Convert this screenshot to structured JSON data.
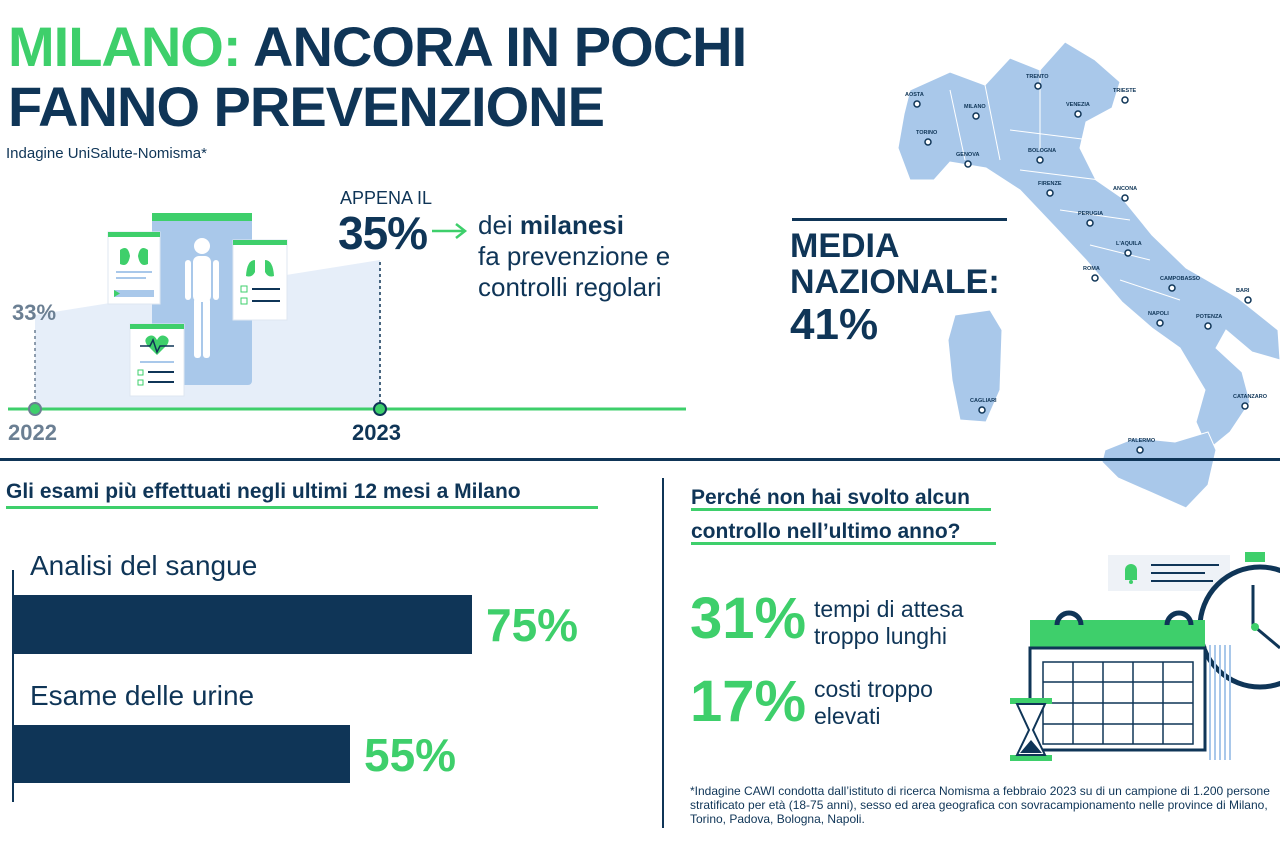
{
  "header": {
    "title_accent": "MILANO:",
    "title_rest": "ANCORA IN POCHI",
    "title_line2": "FANNO PREVENZIONE",
    "subtitle": "Indagine UniSalute-Nomisma*"
  },
  "trend": {
    "prefix": "APPENA IL",
    "highlight_value": "35%",
    "text_part1": "dei ",
    "text_bold": "milanesi",
    "text_line2": "fa prevenzione e",
    "text_line3": "controlli regolari",
    "start_value_label": "33%",
    "start_year": "2022",
    "end_year": "2023"
  },
  "national": {
    "label_line1": "MEDIA",
    "label_line2": "NAZIONALE:",
    "value": "41%"
  },
  "map": {
    "cities": [
      "AOSTA",
      "TORINO",
      "MILANO",
      "TRENTO",
      "VENEZIA",
      "TRIESTE",
      "GENOVA",
      "BOLOGNA",
      "FIRENZE",
      "ANCONA",
      "PERUGIA",
      "L'AQUILA",
      "ROMA",
      "CAMPOBASSO",
      "BARI",
      "NAPOLI",
      "POTENZA",
      "CATANZARO",
      "PALERMO",
      "CAGLIARI"
    ]
  },
  "exams": {
    "title": "Gli esami più effettuati negli ultimi 12 mesi a Milano"
  },
  "reasons": {
    "title_line1": "Perché non hai svolto alcun",
    "title_line2": "controllo nell’ultimo anno?",
    "items": [
      {
        "value": "31%",
        "line1": "tempi di attesa",
        "line2": "troppo lunghi"
      },
      {
        "value": "17%",
        "line1": "costi troppo",
        "line2": "elevati"
      }
    ]
  },
  "footnote": "*Indagine CAWI condotta dall’istituto di ricerca Nomisma a febbraio 2023 su di un campione di 1.200 persone stratificato per età (18-75 anni), sesso ed area geografica con sovracampionamento nelle province di Milano, Torino, Padova, Bologna, Napoli.",
  "colors": {
    "navy": "#0f3557",
    "green": "#3ecf6b",
    "light_blue": "#9fc3e8",
    "map_blue": "#a9c8ea"
  },
  "chart_data": [
    {
      "type": "bar",
      "categories": [
        "Analisi del sangue",
        "Esame delle urine"
      ],
      "values": [
        75,
        55
      ],
      "value_labels": [
        "75%",
        "55%"
      ],
      "title": "Gli esami più effettuati negli ultimi 12 mesi a Milano",
      "xlim": [
        0,
        100
      ]
    },
    {
      "type": "line",
      "x": [
        "2022",
        "2023"
      ],
      "values": [
        33,
        35
      ],
      "value_labels": [
        "33%",
        "35%"
      ]
    }
  ]
}
